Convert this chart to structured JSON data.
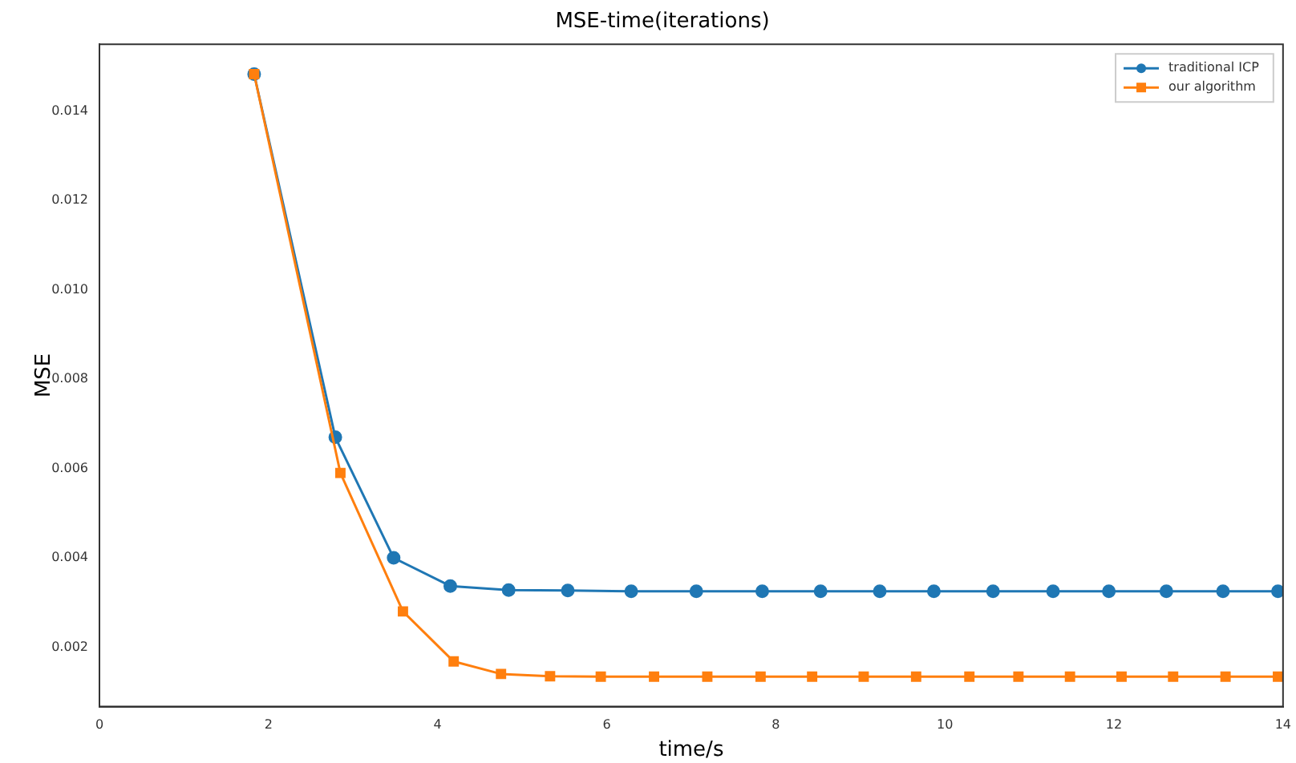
{
  "chart_data": {
    "type": "line",
    "title": "MSE-time(iterations)",
    "xlabel": "time/s",
    "ylabel": "MSE",
    "xlim": [
      0,
      14
    ],
    "xticks": [
      0,
      2,
      4,
      6,
      8,
      10,
      12,
      14
    ],
    "ylim": [
      0.00067,
      0.0155
    ],
    "yticks": [
      0.002,
      0.004,
      0.006,
      0.008,
      {
        "value": 0.01,
        "label": "0.010"
      },
      0.012,
      0.014
    ],
    "series": [
      {
        "name": "traditional ICP",
        "color": "#1f77b4",
        "marker": "circle",
        "x": [
          1.83,
          2.79,
          3.48,
          4.15,
          4.84,
          5.54,
          6.29,
          7.06,
          7.84,
          8.53,
          9.23,
          9.87,
          10.57,
          11.28,
          11.94,
          12.62,
          13.29,
          13.94
        ],
        "values": [
          0.01483,
          0.0067,
          0.004,
          0.00337,
          0.00328,
          0.00327,
          0.00325,
          0.00325,
          0.00325,
          0.00325,
          0.00325,
          0.00325,
          0.00325,
          0.00325,
          0.00325,
          0.00325,
          0.00325,
          0.00325
        ]
      },
      {
        "name": "our algorithm",
        "color": "#ff7f0e",
        "marker": "square",
        "x": [
          1.83,
          2.85,
          3.59,
          4.19,
          4.75,
          5.33,
          5.93,
          6.56,
          7.19,
          7.82,
          8.43,
          9.04,
          9.66,
          10.29,
          10.87,
          11.48,
          12.09,
          12.7,
          13.32,
          13.94
        ],
        "values": [
          0.01483,
          0.0059,
          0.0028,
          0.00168,
          0.0014,
          0.00135,
          0.00134,
          0.00134,
          0.00134,
          0.00134,
          0.00134,
          0.00134,
          0.00134,
          0.00134,
          0.00134,
          0.00134,
          0.00134,
          0.00134,
          0.00134,
          0.00134
        ]
      }
    ],
    "legend": "top right",
    "grid": false
  }
}
